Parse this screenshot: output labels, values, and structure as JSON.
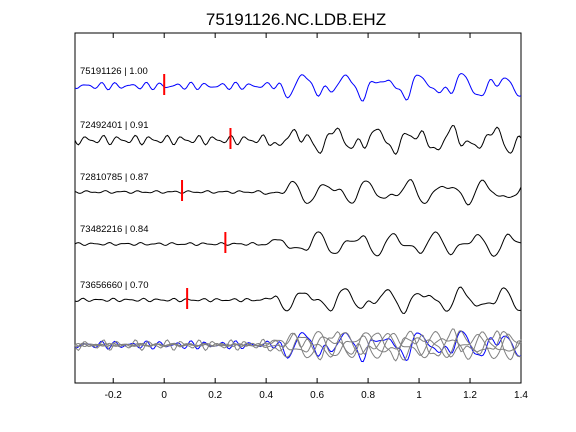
{
  "chart_data": {
    "type": "line",
    "title": "75191126.NC.LDB.EHZ",
    "xlim": [
      -0.35,
      1.4
    ],
    "x_ticks": [
      "-0.2",
      "0",
      "0.2",
      "0.4",
      "0.6",
      "0.8",
      "1",
      "1.2",
      "1.4"
    ],
    "x_tick_values": [
      -0.2,
      0,
      0.2,
      0.4,
      0.6,
      0.8,
      1,
      1.2,
      1.4
    ],
    "grid": false,
    "colors": {
      "master": "#0000ff",
      "trace": "#000000",
      "pick": "#ff0000",
      "overlay_gray": "#808080"
    },
    "traces": [
      {
        "label": "75191126 | 1.00",
        "pick": 0.0,
        "color": "#0000ff",
        "seed": 3
      },
      {
        "label": "72492401 | 0.91",
        "pick": 0.26,
        "color": "#000000",
        "seed": 7
      },
      {
        "label": "72810785 | 0.87",
        "pick": 0.07,
        "color": "#000000",
        "seed": 11
      },
      {
        "label": "73482216 | 0.84",
        "pick": 0.24,
        "color": "#000000",
        "seed": 17
      },
      {
        "label": "73656660 | 0.70",
        "pick": 0.09,
        "color": "#000000",
        "seed": 23
      }
    ]
  }
}
